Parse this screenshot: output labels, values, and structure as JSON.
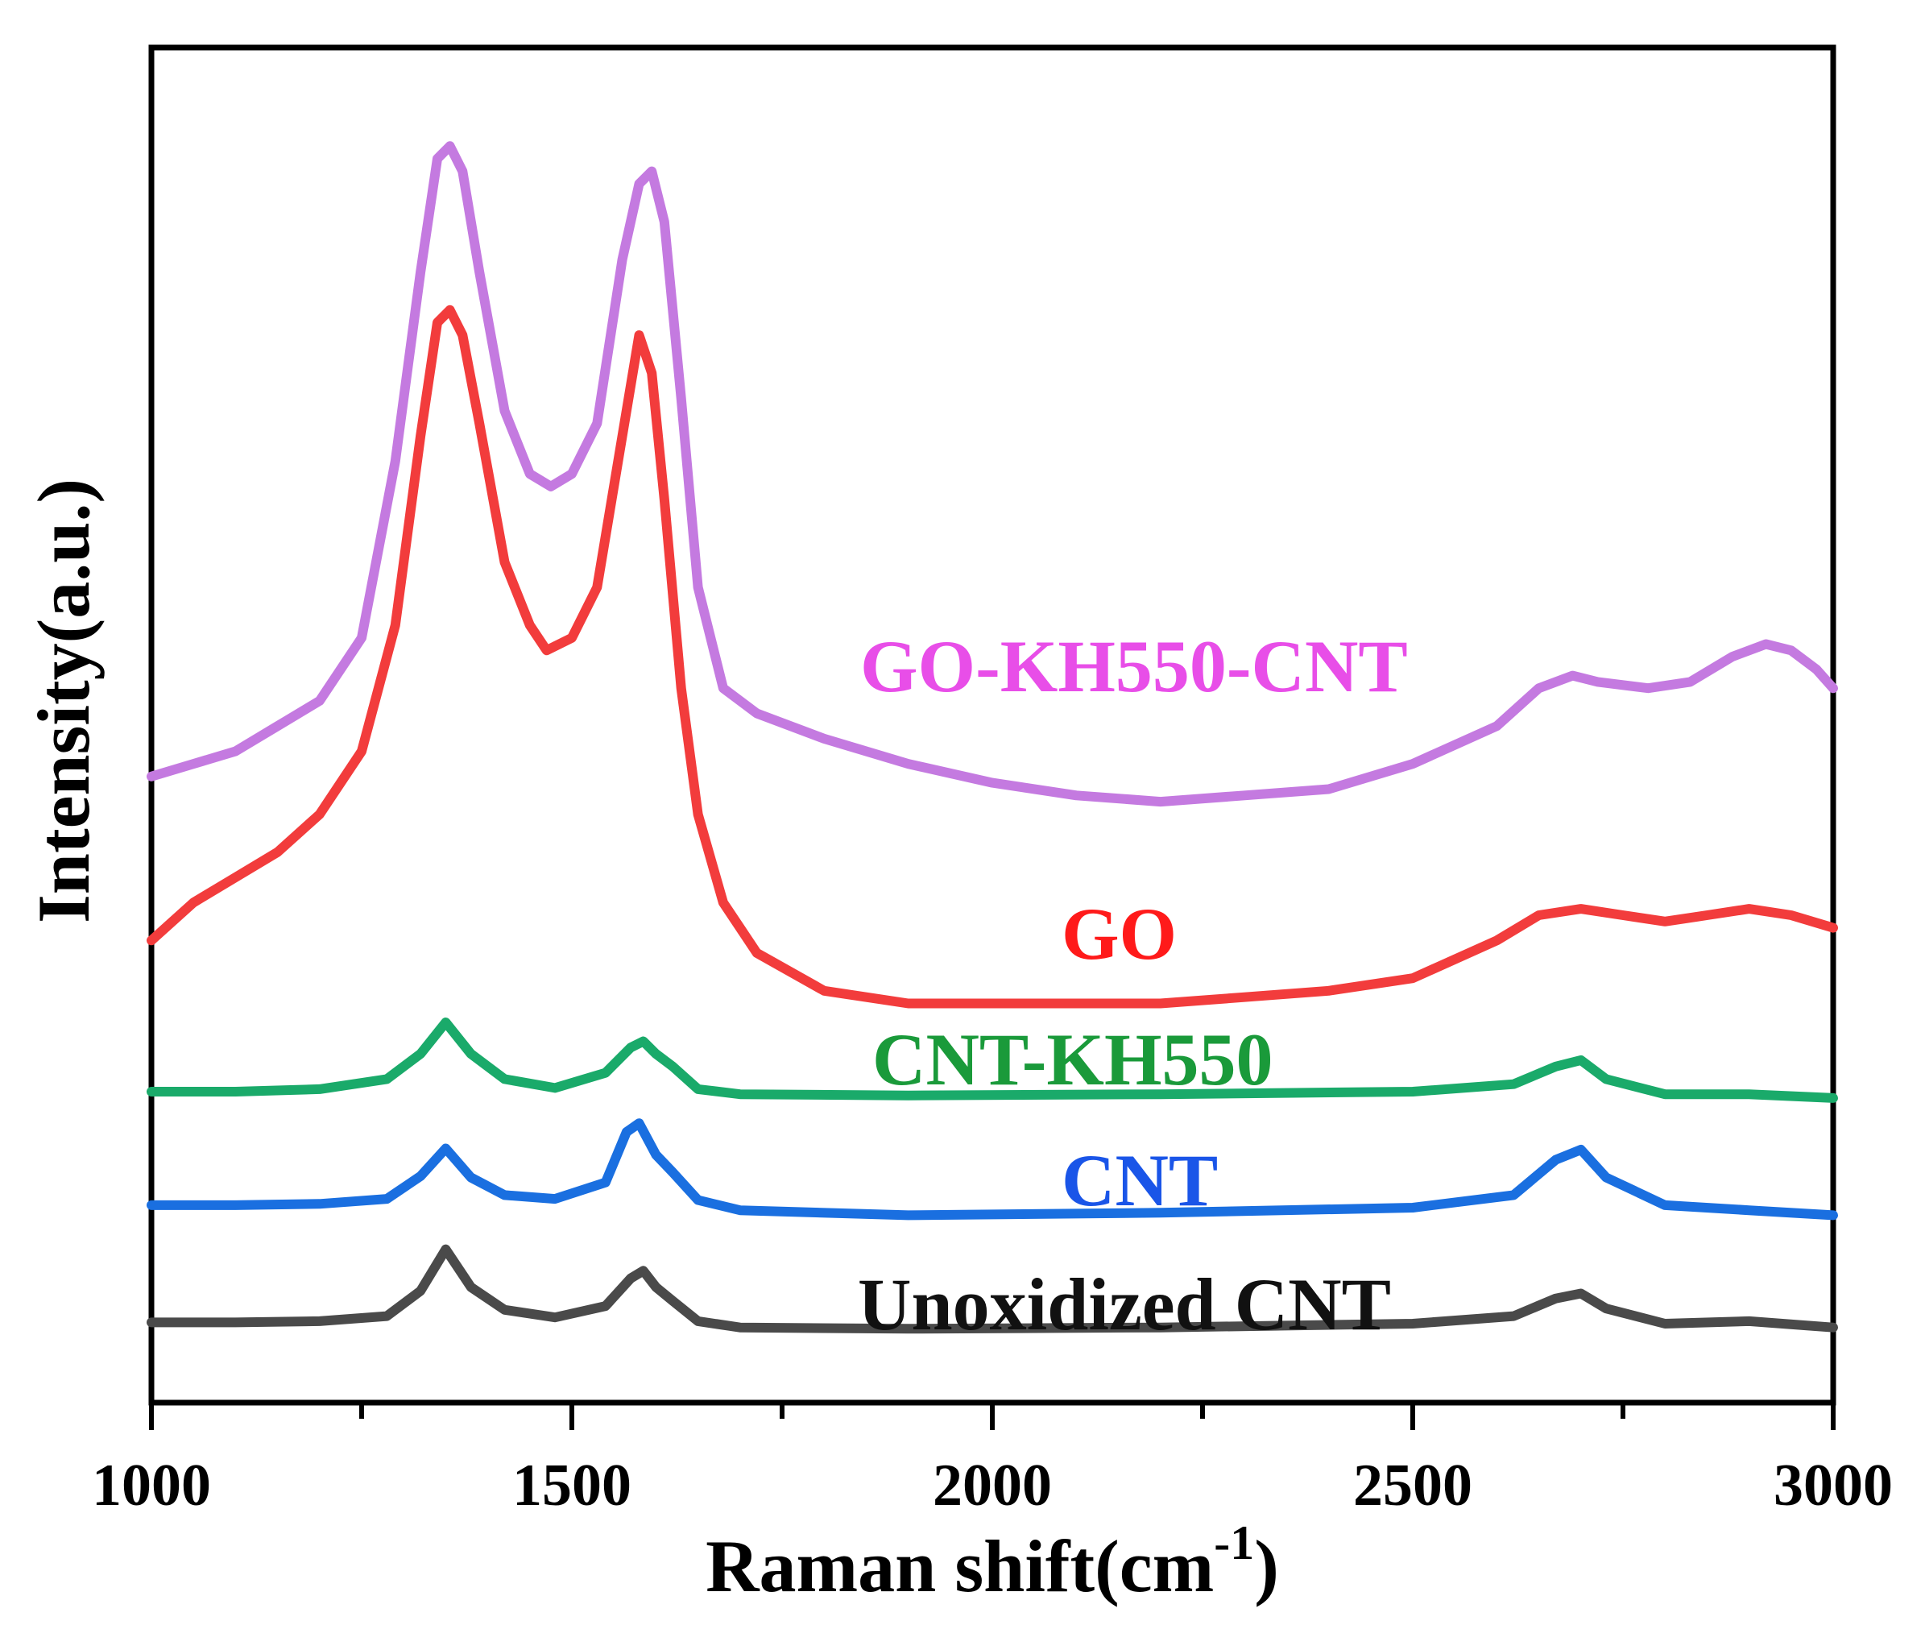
{
  "chart_data": {
    "type": "line",
    "title": "",
    "xlabel": "Raman shift(cm",
    "xlabel_superscript": "-1",
    "xlabel_suffix": ")",
    "ylabel": "Intensity(a.u.)",
    "xlim": [
      1000,
      3000
    ],
    "ylim": [
      0,
      1
    ],
    "x_ticks": [
      "1000",
      "1500",
      "2000",
      "2500",
      "3000"
    ],
    "grid": false,
    "legend": "inline-labels",
    "series": [
      {
        "name": "Unoxidized CNT",
        "color": "#4a4a4a",
        "x": [
          1000,
          1100,
          1200,
          1280,
          1320,
          1350,
          1380,
          1420,
          1480,
          1540,
          1570,
          1585,
          1600,
          1620,
          1650,
          1700,
          1900,
          2200,
          2500,
          2620,
          2670,
          2700,
          2730,
          2800,
          2900,
          3000
        ],
        "values": [
          0.047,
          0.047,
          0.048,
          0.052,
          0.072,
          0.105,
          0.075,
          0.057,
          0.051,
          0.06,
          0.082,
          0.088,
          0.075,
          0.064,
          0.048,
          0.043,
          0.042,
          0.043,
          0.046,
          0.052,
          0.066,
          0.07,
          0.058,
          0.046,
          0.048,
          0.043
        ]
      },
      {
        "name": "CNT",
        "color": "#1a6fe0",
        "x": [
          1000,
          1100,
          1200,
          1280,
          1320,
          1350,
          1380,
          1420,
          1480,
          1540,
          1565,
          1580,
          1600,
          1620,
          1650,
          1700,
          1900,
          2200,
          2500,
          2620,
          2670,
          2700,
          2730,
          2800,
          2900,
          3000
        ],
        "values": [
          0.14,
          0.14,
          0.141,
          0.145,
          0.163,
          0.185,
          0.162,
          0.148,
          0.145,
          0.158,
          0.198,
          0.205,
          0.18,
          0.166,
          0.144,
          0.136,
          0.132,
          0.134,
          0.138,
          0.148,
          0.176,
          0.184,
          0.162,
          0.14,
          0.136,
          0.132
        ]
      },
      {
        "name": "CNT-KH550",
        "color": "#1aaa6a",
        "x": [
          1000,
          1100,
          1200,
          1280,
          1320,
          1350,
          1380,
          1420,
          1480,
          1540,
          1570,
          1585,
          1600,
          1620,
          1650,
          1700,
          1900,
          2200,
          2500,
          2620,
          2670,
          2700,
          2730,
          2800,
          2900,
          3000
        ],
        "values": [
          0.23,
          0.23,
          0.232,
          0.24,
          0.26,
          0.285,
          0.26,
          0.24,
          0.233,
          0.245,
          0.265,
          0.27,
          0.26,
          0.25,
          0.232,
          0.228,
          0.227,
          0.228,
          0.23,
          0.236,
          0.25,
          0.255,
          0.24,
          0.228,
          0.228,
          0.225
        ]
      },
      {
        "name": "GO",
        "color": "#f23c3c",
        "x": [
          1000,
          1050,
          1100,
          1150,
          1200,
          1250,
          1290,
          1320,
          1340,
          1355,
          1370,
          1390,
          1420,
          1450,
          1470,
          1500,
          1530,
          1560,
          1580,
          1595,
          1610,
          1630,
          1650,
          1680,
          1720,
          1800,
          1900,
          2000,
          2100,
          2200,
          2300,
          2400,
          2500,
          2600,
          2650,
          2700,
          2750,
          2800,
          2850,
          2900,
          2950,
          3000
        ],
        "values": [
          0.35,
          0.38,
          0.4,
          0.42,
          0.45,
          0.5,
          0.6,
          0.75,
          0.84,
          0.85,
          0.83,
          0.76,
          0.65,
          0.6,
          0.58,
          0.59,
          0.63,
          0.75,
          0.83,
          0.8,
          0.7,
          0.55,
          0.45,
          0.38,
          0.34,
          0.31,
          0.3,
          0.3,
          0.3,
          0.3,
          0.305,
          0.31,
          0.32,
          0.35,
          0.37,
          0.375,
          0.37,
          0.365,
          0.37,
          0.375,
          0.37,
          0.36
        ]
      },
      {
        "name": "GO-KH550-CNT",
        "color": "#c47ae0",
        "x": [
          1000,
          1050,
          1100,
          1150,
          1200,
          1250,
          1290,
          1320,
          1340,
          1355,
          1370,
          1390,
          1420,
          1450,
          1475,
          1500,
          1530,
          1560,
          1580,
          1595,
          1610,
          1630,
          1650,
          1680,
          1720,
          1800,
          1900,
          2000,
          2100,
          2200,
          2300,
          2400,
          2500,
          2600,
          2650,
          2690,
          2720,
          2780,
          2830,
          2880,
          2920,
          2950,
          2980,
          3000
        ],
        "values": [
          0.48,
          0.49,
          0.5,
          0.52,
          0.54,
          0.59,
          0.73,
          0.88,
          0.97,
          0.98,
          0.96,
          0.88,
          0.77,
          0.72,
          0.71,
          0.72,
          0.76,
          0.89,
          0.95,
          0.96,
          0.92,
          0.78,
          0.63,
          0.55,
          0.53,
          0.51,
          0.49,
          0.475,
          0.465,
          0.46,
          0.465,
          0.47,
          0.49,
          0.52,
          0.55,
          0.56,
          0.555,
          0.55,
          0.555,
          0.575,
          0.585,
          0.58,
          0.565,
          0.55
        ]
      }
    ]
  }
}
